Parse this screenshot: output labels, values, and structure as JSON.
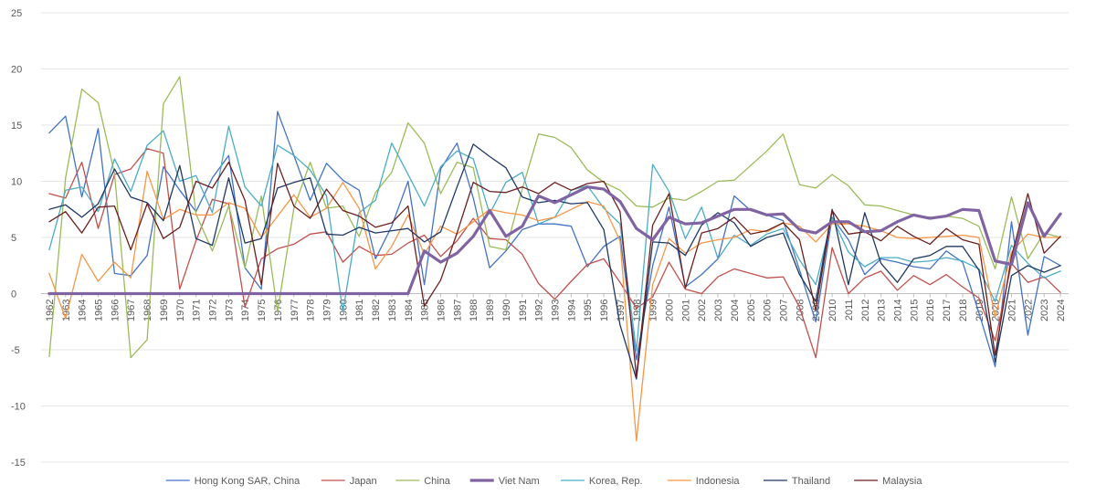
{
  "chart_data": {
    "type": "line",
    "title": "",
    "xlabel": "",
    "ylabel": "",
    "ylim": [
      -15,
      25
    ],
    "yticks": [
      25,
      20,
      15,
      10,
      5,
      0,
      -5,
      -10,
      -15
    ],
    "grid": "horizontal",
    "legend_position": "bottom",
    "x": [
      "1962",
      "1963",
      "1964",
      "1965",
      "1966",
      "1967",
      "1968",
      "1969",
      "1970",
      "1971",
      "1972",
      "1973",
      "1974",
      "1975",
      "1976",
      "1977",
      "1978",
      "1979",
      "1980",
      "1981",
      "1982",
      "1983",
      "1984",
      "1985",
      "1986",
      "1987",
      "1988",
      "1989",
      "1990",
      "1991",
      "1992",
      "1993",
      "1994",
      "1995",
      "1996",
      "1997",
      "1998",
      "1999",
      "2000",
      "2001",
      "2002",
      "2003",
      "2004",
      "2005",
      "2006",
      "2007",
      "2008",
      "2009",
      "2010",
      "2011",
      "2012",
      "2013",
      "2014",
      "2015",
      "2016",
      "2017",
      "2018",
      "2019",
      "2020",
      "2021",
      "2022",
      "2023",
      "2024"
    ],
    "series": [
      {
        "name": "Hong Kong SAR, China",
        "color": "#4472c4",
        "width": 1.3,
        "values": [
          14.3,
          15.8,
          8.6,
          14.7,
          1.8,
          1.6,
          3.4,
          11.3,
          9.2,
          7.3,
          10.3,
          12.3,
          2.3,
          0.4,
          16.2,
          12.3,
          8.3,
          11.6,
          10.1,
          9.2,
          3.1,
          6.0,
          10.0,
          0.8,
          11.1,
          13.4,
          8.5,
          2.3,
          3.8,
          5.7,
          6.2,
          6.2,
          6.0,
          2.4,
          4.2,
          5.1,
          -5.9,
          2.5,
          7.7,
          0.6,
          1.7,
          3.1,
          8.7,
          7.4,
          7.0,
          6.5,
          2.1,
          -2.5,
          6.8,
          4.8,
          1.7,
          3.1,
          2.8,
          2.4,
          2.2,
          3.8,
          2.8,
          -1.7,
          -6.5,
          6.4,
          -3.7,
          3.3,
          2.5
        ]
      },
      {
        "name": "Japan",
        "color": "#c0504d",
        "width": 1.3,
        "values": [
          8.9,
          8.5,
          11.7,
          5.8,
          10.6,
          11.1,
          12.9,
          12.5,
          0.4,
          4.7,
          8.4,
          8.0,
          -1.2,
          3.1,
          4.0,
          4.4,
          5.3,
          5.5,
          2.8,
          4.2,
          3.4,
          3.5,
          4.5,
          5.2,
          3.3,
          4.7,
          6.7,
          4.9,
          4.8,
          3.5,
          0.9,
          -0.5,
          1.1,
          2.6,
          3.1,
          1.0,
          -1.3,
          -0.3,
          2.8,
          0.4,
          0.0,
          1.5,
          2.2,
          1.8,
          1.4,
          1.5,
          -1.2,
          -5.7,
          4.1,
          0.0,
          1.4,
          2.0,
          0.3,
          1.6,
          0.8,
          1.7,
          0.6,
          -0.4,
          -4.2,
          2.7,
          1.0,
          1.5,
          0.1
        ]
      },
      {
        "name": "China",
        "color": "#9bbb59",
        "width": 1.3,
        "values": [
          -5.6,
          10.3,
          18.2,
          17.0,
          10.7,
          -5.7,
          -4.1,
          16.9,
          19.3,
          7.1,
          3.8,
          7.8,
          2.3,
          8.7,
          -1.6,
          7.6,
          11.7,
          7.6,
          7.8,
          5.1,
          9.0,
          10.8,
          15.2,
          13.4,
          8.9,
          11.7,
          11.2,
          4.2,
          3.9,
          9.3,
          14.2,
          13.9,
          13.0,
          11.0,
          9.9,
          9.2,
          7.8,
          7.7,
          8.5,
          8.3,
          9.1,
          10.0,
          10.1,
          11.4,
          12.7,
          14.2,
          9.7,
          9.4,
          10.6,
          9.6,
          7.9,
          7.8,
          7.4,
          7.0,
          6.8,
          6.9,
          6.7,
          6.0,
          2.2,
          8.6,
          3.1,
          5.4,
          5.0
        ]
      },
      {
        "name": "Viet Nam",
        "color": "#8064a2",
        "width": 3.2,
        "values": [
          0,
          0,
          0,
          0,
          0,
          0,
          0,
          0,
          0,
          0,
          0,
          0,
          0,
          0,
          0,
          0,
          0,
          0,
          0,
          0,
          0,
          0,
          0,
          3.8,
          2.8,
          3.6,
          5.1,
          7.4,
          5.1,
          6.0,
          8.7,
          8.1,
          8.8,
          9.5,
          9.3,
          8.2,
          5.8,
          4.8,
          6.8,
          6.2,
          6.3,
          6.9,
          7.5,
          7.5,
          7.0,
          7.1,
          5.7,
          5.4,
          6.4,
          6.4,
          5.5,
          5.6,
          6.4,
          7.0,
          6.7,
          6.9,
          7.5,
          7.4,
          2.9,
          2.6,
          8.1,
          5.1,
          7.1
        ]
      },
      {
        "name": "Korea, Rep.",
        "color": "#4bacc6",
        "width": 1.3,
        "values": [
          3.9,
          9.2,
          9.5,
          7.3,
          12.0,
          9.1,
          13.2,
          14.5,
          10.0,
          10.5,
          7.2,
          14.9,
          9.5,
          7.8,
          13.2,
          12.3,
          11.0,
          8.7,
          -1.6,
          7.2,
          8.3,
          13.4,
          10.6,
          7.8,
          11.3,
          12.7,
          12.0,
          7.1,
          9.9,
          10.8,
          6.2,
          6.8,
          9.2,
          9.6,
          7.6,
          6.2,
          -5.1,
          11.5,
          9.1,
          4.9,
          7.7,
          3.1,
          5.2,
          4.3,
          5.3,
          5.8,
          3.0,
          0.8,
          6.8,
          3.7,
          2.4,
          3.2,
          3.2,
          2.8,
          2.9,
          3.2,
          2.9,
          2.2,
          -0.7,
          4.3,
          2.7,
          1.4,
          2.0
        ]
      },
      {
        "name": "Indonesia",
        "color": "#f79646",
        "width": 1.3,
        "values": [
          1.8,
          -2.2,
          3.5,
          1.1,
          2.8,
          1.4,
          10.9,
          6.6,
          7.5,
          7.0,
          7.0,
          8.1,
          7.6,
          5.0,
          6.9,
          8.8,
          6.8,
          7.6,
          9.9,
          7.6,
          2.2,
          4.2,
          7.0,
          3.5,
          6.0,
          5.3,
          6.4,
          7.5,
          7.2,
          7.0,
          6.5,
          6.8,
          7.5,
          8.2,
          7.8,
          4.7,
          -13.1,
          0.8,
          4.9,
          3.6,
          4.5,
          4.8,
          5.0,
          5.7,
          5.5,
          6.3,
          6.0,
          4.6,
          6.2,
          6.2,
          6.0,
          5.6,
          5.0,
          4.9,
          5.0,
          5.1,
          5.2,
          5.0,
          -2.1,
          3.7,
          5.3,
          5.0,
          5.0
        ]
      },
      {
        "name": "Thailand",
        "color": "#1f3864",
        "width": 1.3,
        "values": [
          7.5,
          7.9,
          6.8,
          8.0,
          11.1,
          8.6,
          8.1,
          6.5,
          11.4,
          4.9,
          4.3,
          10.3,
          4.5,
          4.9,
          9.4,
          9.9,
          10.3,
          5.3,
          5.2,
          5.9,
          5.4,
          5.6,
          5.8,
          4.6,
          5.5,
          9.5,
          13.3,
          12.2,
          11.2,
          8.6,
          8.1,
          8.3,
          8.0,
          8.1,
          5.7,
          -2.8,
          -7.6,
          4.6,
          4.5,
          3.4,
          6.1,
          7.2,
          6.3,
          4.2,
          5.0,
          5.4,
          1.7,
          -0.7,
          7.5,
          0.8,
          7.2,
          2.7,
          1.0,
          3.1,
          3.4,
          4.2,
          4.2,
          2.1,
          -6.1,
          1.6,
          2.5,
          1.9,
          2.5
        ]
      },
      {
        "name": "Malaysia",
        "color": "#6b1f1f",
        "width": 1.3,
        "values": [
          6.4,
          7.3,
          5.4,
          7.7,
          7.8,
          3.9,
          8.0,
          4.9,
          5.9,
          10.0,
          9.4,
          11.7,
          8.3,
          0.8,
          11.6,
          7.8,
          6.7,
          9.3,
          7.4,
          6.9,
          5.9,
          6.3,
          7.8,
          -1.1,
          1.2,
          5.4,
          9.9,
          9.1,
          9.0,
          9.5,
          8.9,
          9.9,
          9.2,
          9.8,
          10.0,
          7.3,
          -7.4,
          6.1,
          8.9,
          0.5,
          5.4,
          5.8,
          6.8,
          5.3,
          5.6,
          6.3,
          4.8,
          -1.5,
          7.4,
          5.3,
          5.5,
          4.7,
          6.0,
          5.1,
          4.4,
          5.8,
          4.8,
          4.4,
          -5.5,
          3.3,
          8.9,
          3.6,
          5.1
        ]
      }
    ]
  }
}
